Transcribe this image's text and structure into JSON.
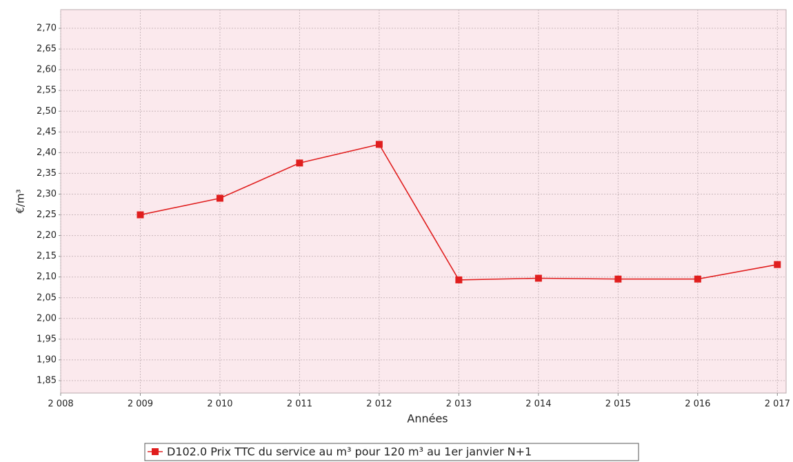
{
  "chart_data": {
    "type": "line",
    "xlabel": "Années",
    "ylabel": "€/m³",
    "x": [
      2009,
      2010,
      2011,
      2012,
      2013,
      2014,
      2015,
      2016,
      2017
    ],
    "series": [
      {
        "name": "D102.0 Prix TTC du service au m³ pour 120 m³ au 1er janvier N+1",
        "color": "#e01e1e",
        "values": [
          2.25,
          2.29,
          2.375,
          2.42,
          2.093,
          2.097,
          2.095,
          2.095,
          2.13
        ]
      }
    ],
    "xlim": [
      2008,
      2017.11
    ],
    "xticks": [
      {
        "value": 2008,
        "label": "2 008"
      },
      {
        "value": 2009,
        "label": "2 009"
      },
      {
        "value": 2010,
        "label": "2 010"
      },
      {
        "value": 2011,
        "label": "2 011"
      },
      {
        "value": 2012,
        "label": "2 012"
      },
      {
        "value": 2013,
        "label": "2 013"
      },
      {
        "value": 2014,
        "label": "2 014"
      },
      {
        "value": 2015,
        "label": "2 015"
      },
      {
        "value": 2016,
        "label": "2 016"
      },
      {
        "value": 2017,
        "label": "2 017"
      }
    ],
    "ylim": [
      1.82,
      2.745
    ],
    "yticks": [
      {
        "value": 1.85,
        "label": "1,85"
      },
      {
        "value": 1.9,
        "label": "1,90"
      },
      {
        "value": 1.95,
        "label": "1,95"
      },
      {
        "value": 2.0,
        "label": "2,00"
      },
      {
        "value": 2.05,
        "label": "2,05"
      },
      {
        "value": 2.1,
        "label": "2,10"
      },
      {
        "value": 2.15,
        "label": "2,15"
      },
      {
        "value": 2.2,
        "label": "2,20"
      },
      {
        "value": 2.25,
        "label": "2,25"
      },
      {
        "value": 2.3,
        "label": "2,30"
      },
      {
        "value": 2.35,
        "label": "2,35"
      },
      {
        "value": 2.4,
        "label": "2,40"
      },
      {
        "value": 2.45,
        "label": "2,45"
      },
      {
        "value": 2.5,
        "label": "2,50"
      },
      {
        "value": 2.55,
        "label": "2,55"
      },
      {
        "value": 2.6,
        "label": "2,60"
      },
      {
        "value": 2.65,
        "label": "2,65"
      },
      {
        "value": 2.7,
        "label": "2,70"
      }
    ],
    "grid": true
  }
}
